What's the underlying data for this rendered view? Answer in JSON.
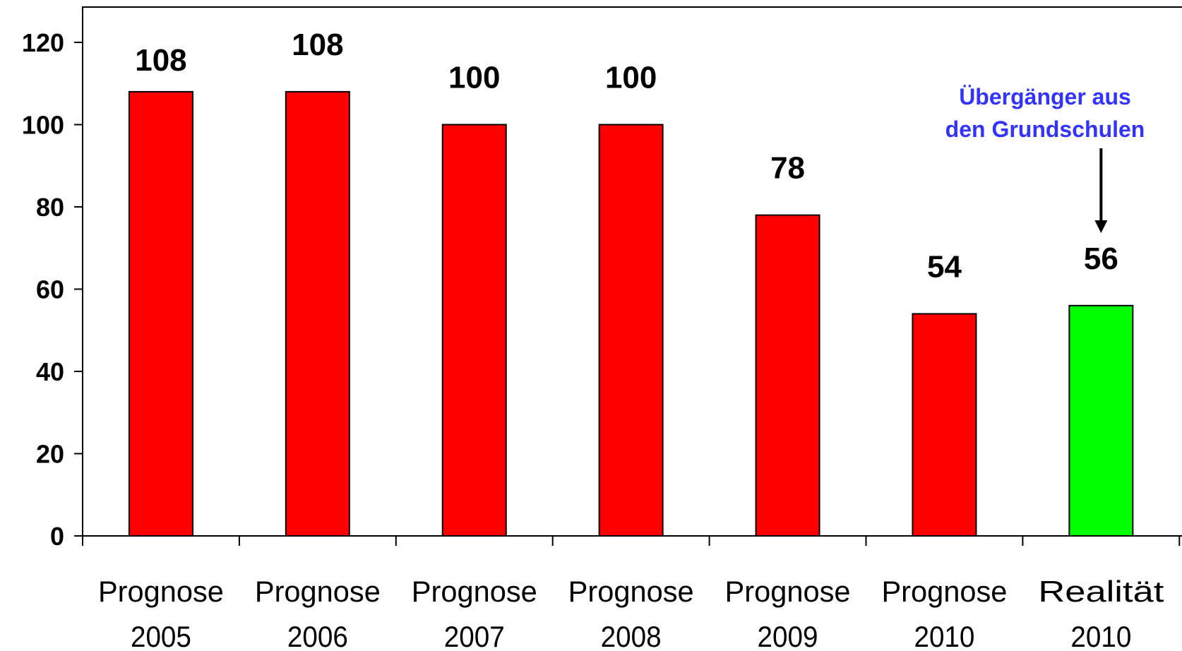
{
  "chart_data": {
    "type": "bar",
    "categories": [
      [
        "Prognose",
        "2005"
      ],
      [
        "Prognose",
        "2006"
      ],
      [
        "Prognose",
        "2007"
      ],
      [
        "Prognose",
        "2008"
      ],
      [
        "Prognose",
        "2009"
      ],
      [
        "Prognose",
        "2010"
      ],
      [
        "Realität",
        "2010"
      ]
    ],
    "values": [
      108,
      108,
      100,
      100,
      78,
      54,
      56
    ],
    "value_labels": [
      "108",
      "108",
      "100",
      "100",
      "78",
      "54",
      "56"
    ],
    "bar_colors": [
      "#ff0000",
      "#ff0000",
      "#ff0000",
      "#ff0000",
      "#ff0000",
      "#ff0000",
      "#00ff00"
    ],
    "ylim": [
      0,
      120
    ],
    "yticks": [
      0,
      20,
      40,
      60,
      80,
      100,
      120
    ],
    "grid": false,
    "annotation": {
      "lines": [
        "Übergänger aus",
        "den Grundschulen"
      ],
      "color": "#3333ff",
      "target_index": 6
    },
    "title": "",
    "xlabel": "",
    "ylabel": ""
  }
}
